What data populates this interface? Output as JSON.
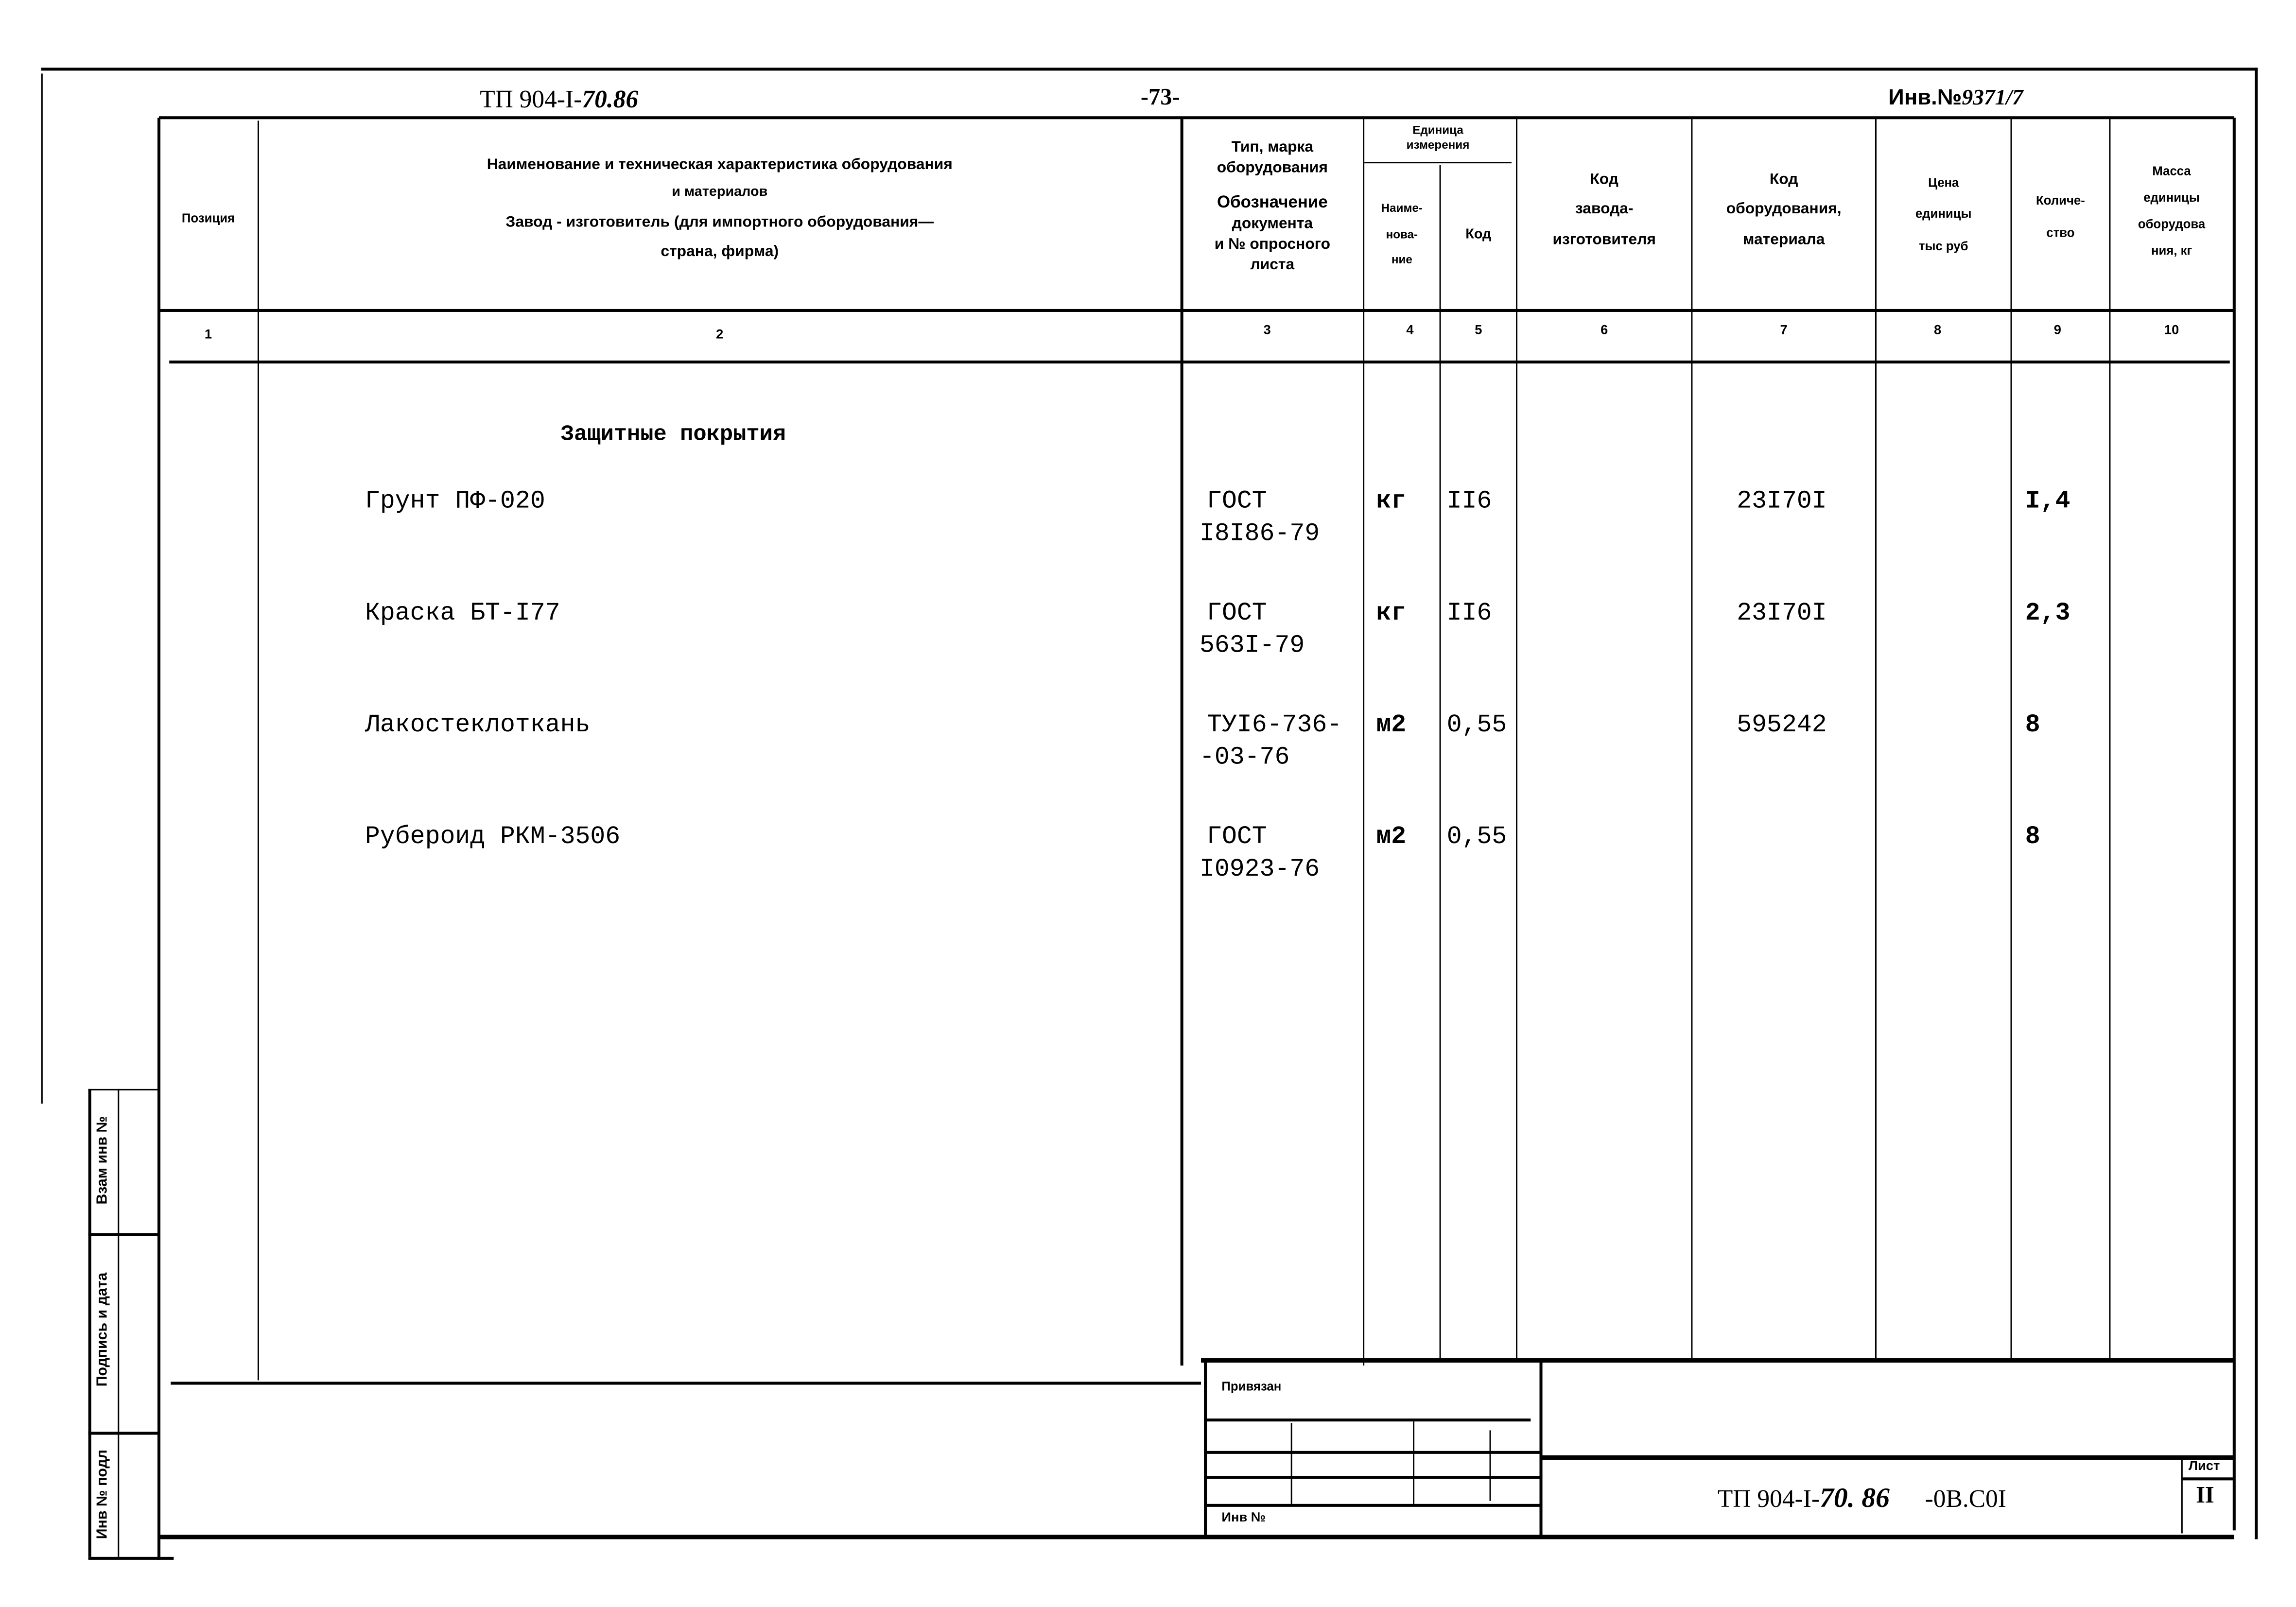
{
  "top": {
    "doc_code_printed": "ТП 904-I-",
    "doc_code_hand": "70.86",
    "page": "-73-",
    "inv_label": "Инв.№",
    "inv_hand": "9371/7"
  },
  "columns": {
    "c1": "Позиция",
    "c2_l1": "Наименование и техническая характеристика оборудования",
    "c2_l2": "и материалов",
    "c2_l3": "Завод - изготовитель (для импортного оборудования—",
    "c2_l4": "страна, фирма)",
    "c3_l1": "Тип, марка",
    "c3_l2": "оборудования",
    "c3_l3": "Обозначение",
    "c3_l4": "документа",
    "c3_l5": "и № опросного",
    "c3_l6": "листа",
    "unit_group_l1": "Единица",
    "unit_group_l2": "измерения",
    "c4_l1": "Наиме-",
    "c4_l2": "нова-",
    "c4_l3": "ние",
    "c5": "Код",
    "c6_l1": "Код",
    "c6_l2": "завода-",
    "c6_l3": "изготовителя",
    "c7_l1": "Код",
    "c7_l2": "оборудования,",
    "c7_l3": "материала",
    "c8_l1": "Цена",
    "c8_l2": "единицы",
    "c8_l3": "тыс руб",
    "c9_l1": "Количе-",
    "c9_l2": "ство",
    "c10_l1": "Масса",
    "c10_l2": "единицы",
    "c10_l3": "оборудова",
    "c10_l4": "ния, кг",
    "numbers": [
      "1",
      "2",
      "3",
      "4",
      "5",
      "6",
      "7",
      "8",
      "9",
      "10"
    ]
  },
  "section_title": "Защитные покрытия",
  "rows": [
    {
      "name": "Грунт ПФ-020",
      "doc_l1": "ГОСТ",
      "doc_l2": "I8I86-79",
      "unit": "кг",
      "unit_code": "II6",
      "material_code": "23I70I",
      "quantity": "I,4"
    },
    {
      "name": "Краска БТ-I77",
      "doc_l1": "ГОСТ",
      "doc_l2": "563I-79",
      "unit": "кг",
      "unit_code": "II6",
      "material_code": "23I70I",
      "quantity": "2,3"
    },
    {
      "name": "Лакостеклоткань",
      "doc_l1": "ТУI6-736-",
      "doc_l2": "-03-76",
      "unit": "м2",
      "unit_code": "0,55",
      "material_code": "595242",
      "quantity": "8"
    },
    {
      "name": "Рубероид РКМ-3506",
      "doc_l1": "ГОСТ",
      "doc_l2": "I0923-76",
      "unit": "м2",
      "unit_code": "0,55",
      "material_code": "",
      "quantity": "8"
    }
  ],
  "side_stamp": {
    "replace_inv": "Взам инв №",
    "sign_date": "Подпись и дата",
    "inv_orig": "Инв № подл"
  },
  "title_block": {
    "linked": "Привязан",
    "inv_no": "Инв №",
    "code_printed": "ТП 904-I-",
    "code_hand": "70. 86",
    "code_suffix": "-0В.С0I",
    "sheet_label": "Лист",
    "sheet_no": "II"
  }
}
